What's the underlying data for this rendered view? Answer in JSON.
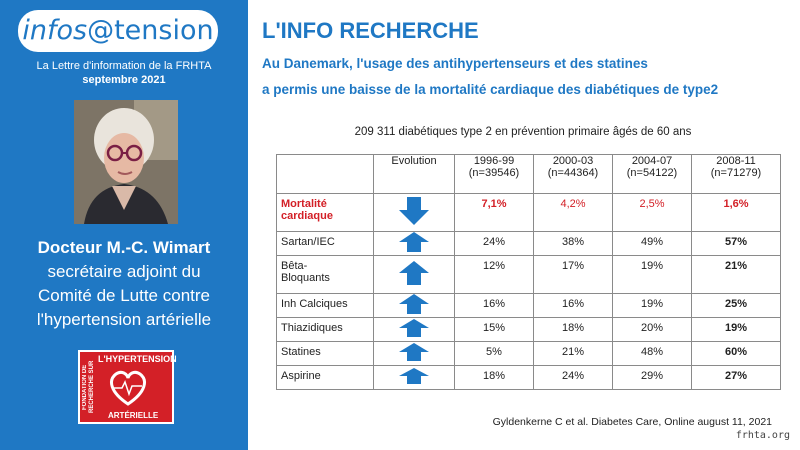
{
  "sidebar": {
    "logo": {
      "part1": "infos",
      "part2": "@tension"
    },
    "letter_title": "La Lettre d'information de la FRHTA",
    "date": "septembre 2021",
    "person_name": "Docteur M.-C. Wimart",
    "role_lines": [
      "secrétaire adjoint du",
      "Comité de Lutte contre",
      "l'hypertension artérielle"
    ],
    "foundation_logo": {
      "vertical_text": "FONDATION DE RECHERCHE SUR",
      "top": "L'HYPERTENSION",
      "bottom": "ARTÉRIELLE"
    }
  },
  "main": {
    "title": "L'INFO RECHERCHE",
    "headline_lines": [
      "Au Danemark, l'usage des antihypertenseurs et des statines",
      "a permis une baisse de la mortalité cardiaque des diabétiques de type2"
    ],
    "table_caption": "209 311 diabétiques type 2 en prévention primaire âgés de 60 ans",
    "table": {
      "headers": [
        {
          "line1": "",
          "line2": ""
        },
        {
          "line1": "Evolution",
          "line2": ""
        },
        {
          "line1": "1996-99",
          "line2": "(n=39546)"
        },
        {
          "line1": "2000-03",
          "line2": "(n=44364)"
        },
        {
          "line1": "2004-07",
          "line2": "(n=54122)"
        },
        {
          "line1": "2008-11",
          "line2": "(n=71279)"
        }
      ],
      "rows": [
        {
          "label_lines": [
            "Mortalité",
            "cardiaque"
          ],
          "trend": "down",
          "values": [
            "7,1%",
            "4,2%",
            "2,5%",
            "1,6%"
          ]
        },
        {
          "label_lines": [
            "Sartan/IEC"
          ],
          "trend": "up",
          "values": [
            "24%",
            "38%",
            "49%",
            "57%"
          ]
        },
        {
          "label_lines": [
            "Bêta-",
            "Bloquants"
          ],
          "trend": "up",
          "values": [
            "12%",
            "17%",
            "19%",
            "21%"
          ]
        },
        {
          "label_lines": [
            "Inh Calciques"
          ],
          "trend": "up",
          "values": [
            "16%",
            "16%",
            "19%",
            "25%"
          ]
        },
        {
          "label_lines": [
            "Thiazidiques"
          ],
          "trend": "up",
          "values": [
            "15%",
            "18%",
            "20%",
            "19%"
          ]
        },
        {
          "label_lines": [
            "Statines"
          ],
          "trend": "up",
          "values": [
            "5%",
            "21%",
            "48%",
            "60%"
          ]
        },
        {
          "label_lines": [
            "Aspirine"
          ],
          "trend": "up",
          "values": [
            "18%",
            "24%",
            "29%",
            "27%"
          ]
        }
      ]
    },
    "reference": "Gyldenkerne C et al. Diabetes Care, Online august 11, 2021",
    "site": "frhta.org"
  },
  "colors": {
    "brand_blue": "#1f78c4",
    "alert_red": "#d32027"
  },
  "icons": {
    "up": "arrow-up-icon",
    "down": "arrow-down-icon"
  }
}
